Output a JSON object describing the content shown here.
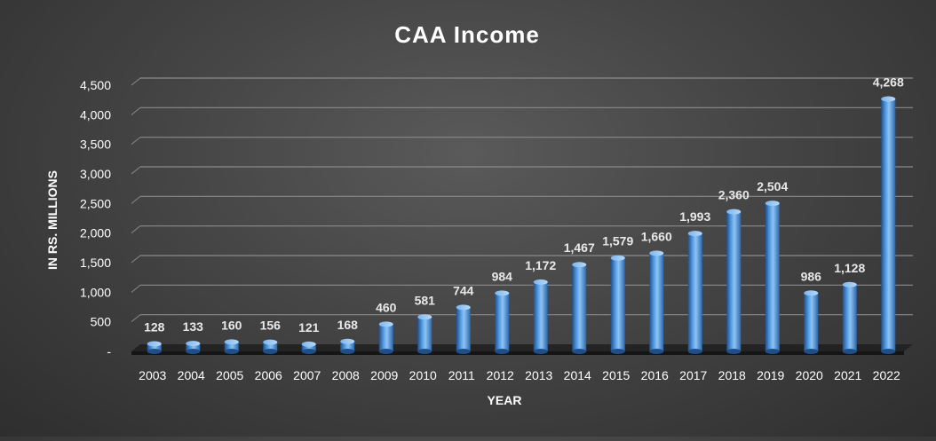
{
  "chart_data": {
    "type": "bar",
    "title": "CAA Income",
    "xlabel": "YEAR",
    "ylabel": "IN RS. MILLIONS",
    "categories": [
      "2003",
      "2004",
      "2005",
      "2006",
      "2007",
      "2008",
      "2009",
      "2010",
      "2011",
      "2012",
      "2013",
      "2014",
      "2015",
      "2016",
      "2017",
      "2018",
      "2019",
      "2020",
      "2021",
      "2022"
    ],
    "values": [
      128,
      133,
      160,
      156,
      121,
      168,
      460,
      581,
      744,
      984,
      1172,
      1467,
      1579,
      1660,
      1993,
      2360,
      2504,
      986,
      1128,
      4268
    ],
    "data_labels": [
      "128",
      "133",
      "160",
      "156",
      "121",
      "168",
      "460",
      "581",
      "744",
      "984",
      "1,172",
      "1,467",
      "1,579",
      "1,660",
      "1,993",
      "2,360",
      "2,504",
      "986",
      "1,128",
      "4,268"
    ],
    "y_ticks": [
      {
        "value": 0,
        "label": "-"
      },
      {
        "value": 500,
        "label": "500"
      },
      {
        "value": 1000,
        "label": "1,000"
      },
      {
        "value": 1500,
        "label": "1,500"
      },
      {
        "value": 2000,
        "label": "2,000"
      },
      {
        "value": 2500,
        "label": "2,500"
      },
      {
        "value": 3000,
        "label": "3,000"
      },
      {
        "value": 3500,
        "label": "3,500"
      },
      {
        "value": 4000,
        "label": "4,000"
      },
      {
        "value": 4500,
        "label": "4,500"
      }
    ],
    "ylim": [
      0,
      4500
    ],
    "grid": true,
    "legend": "none",
    "style": "3d-cylinder",
    "colors": {
      "bar": "#4a90d9",
      "bar_highlight": "#8fc3f2",
      "bar_shadow": "#1f4f8a",
      "grid": "#8a8a8a",
      "text": "#ffffff",
      "label_text": "#e8e8e8"
    }
  }
}
